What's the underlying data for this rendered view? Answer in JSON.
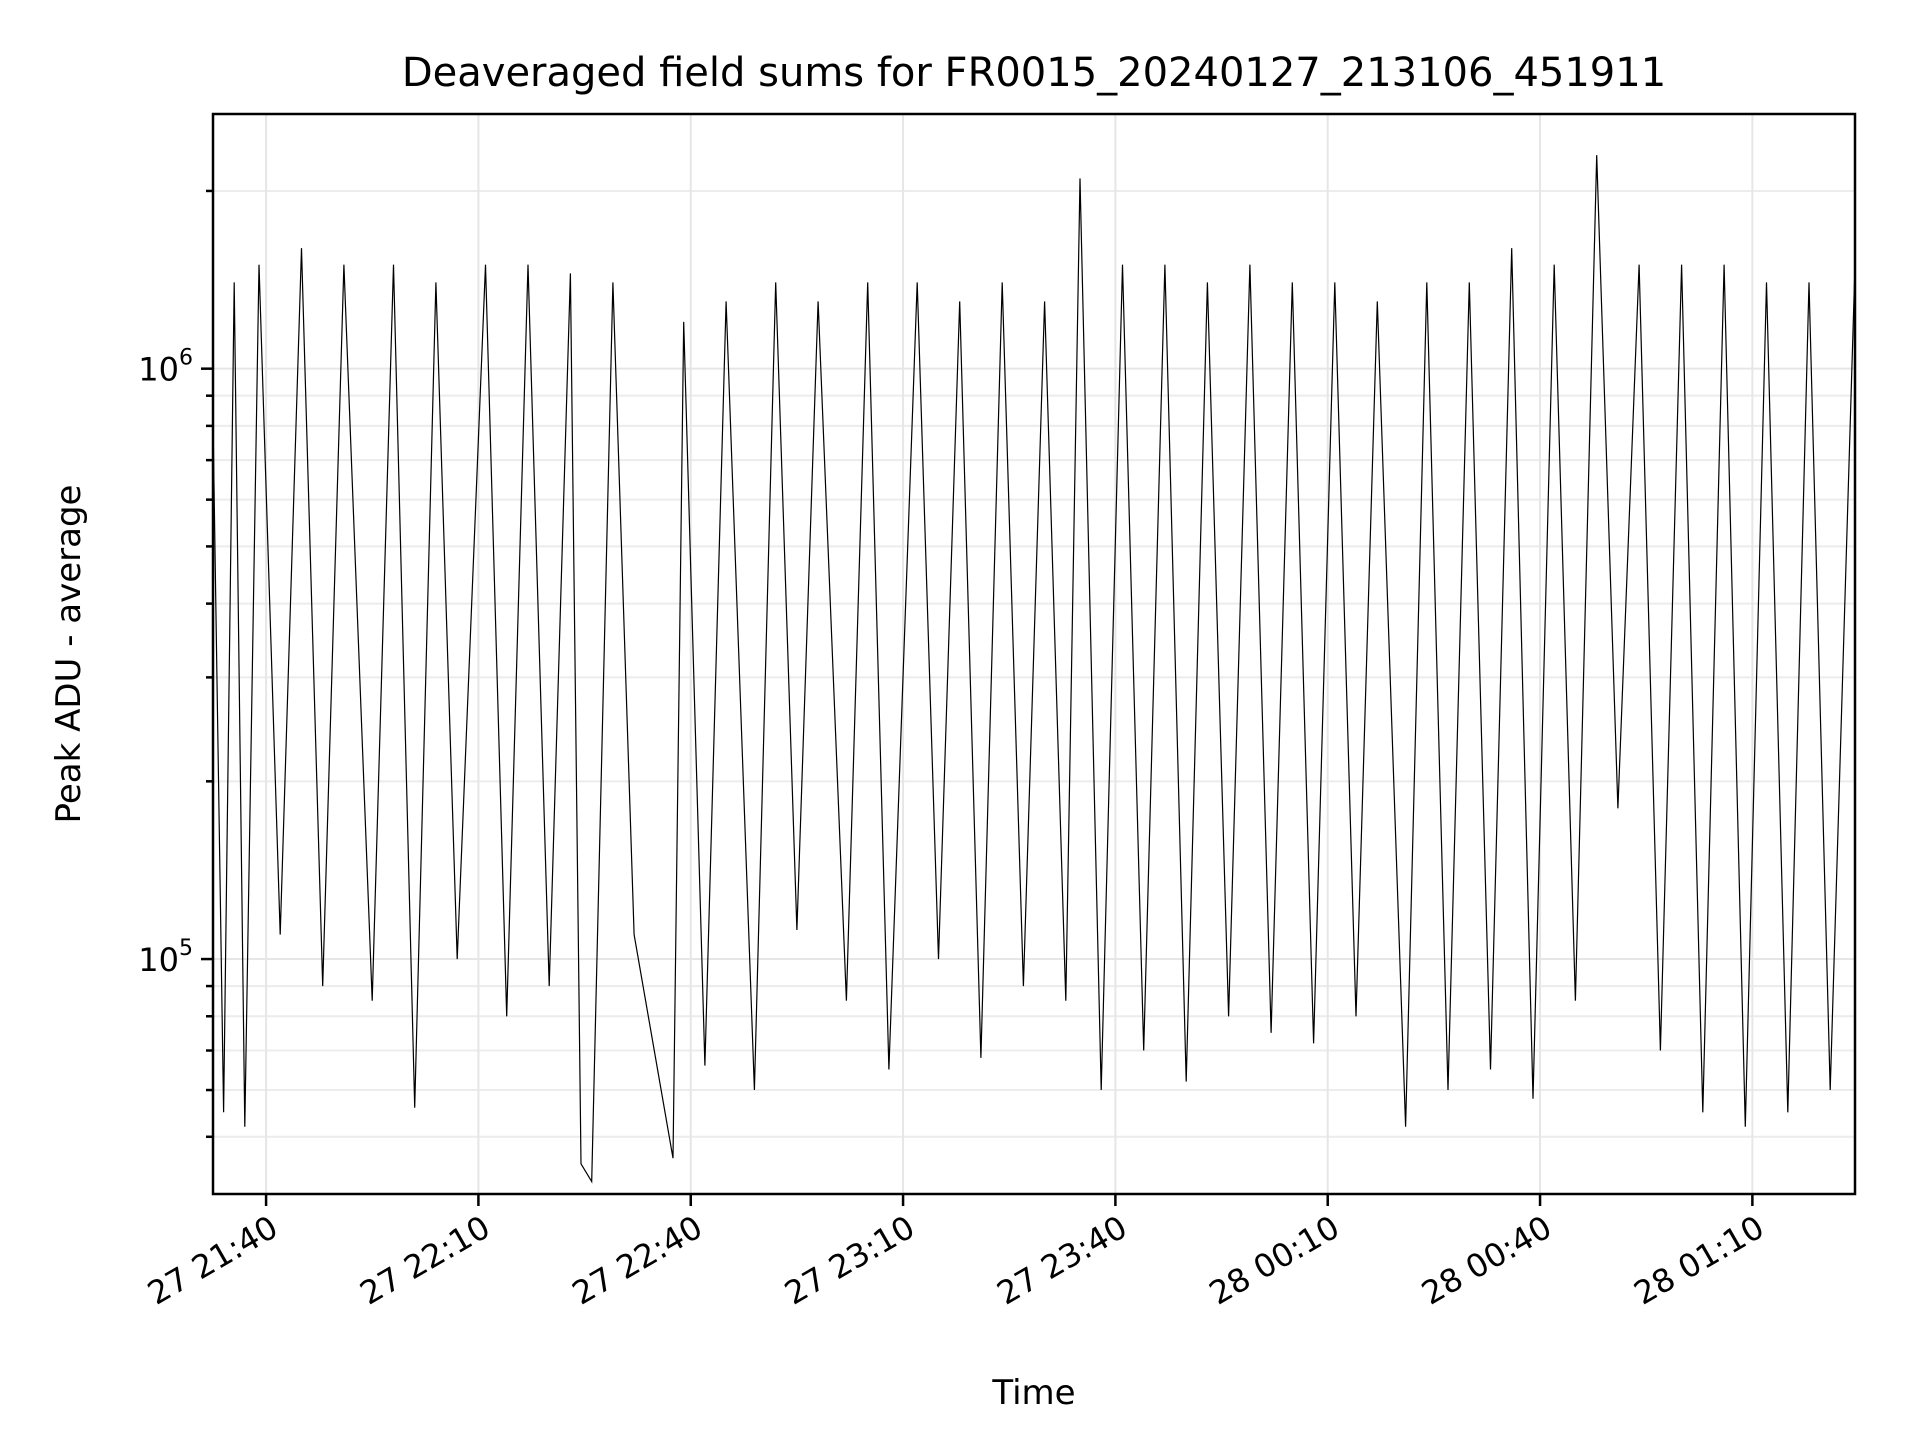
{
  "chart_data": {
    "type": "line",
    "title": "Deaveraged field sums for FR0015_20240127_213106_451911",
    "xlabel": "Time",
    "ylabel": "Peak ADU - average",
    "yscale": "log",
    "ylim": [
      40000,
      2700000
    ],
    "xlim": [
      "2024-01-27 21:32:30",
      "2024-01-28 01:24:30"
    ],
    "grid": true,
    "line_color": "#000000",
    "x_ticks": [
      {
        "value": "2024-01-27 21:40",
        "label": "27 21:40"
      },
      {
        "value": "2024-01-27 22:10",
        "label": "27 22:10"
      },
      {
        "value": "2024-01-27 22:40",
        "label": "27 22:40"
      },
      {
        "value": "2024-01-27 23:10",
        "label": "27 23:10"
      },
      {
        "value": "2024-01-27 23:40",
        "label": "27 23:40"
      },
      {
        "value": "2024-01-28 00:10",
        "label": "28 00:10"
      },
      {
        "value": "2024-01-28 00:40",
        "label": "28 00:40"
      },
      {
        "value": "2024-01-28 01:10",
        "label": "28 01:10"
      }
    ],
    "y_ticks": [
      {
        "value": 100000,
        "base": "10",
        "exp": "5"
      },
      {
        "value": 1000000,
        "base": "10",
        "exp": "6"
      }
    ],
    "series": [
      {
        "x": [
          "2024-01-27 21:32:30",
          "2024-01-27 21:34:00",
          "2024-01-27 21:35:30",
          "2024-01-27 21:37:00",
          "2024-01-27 21:39:00",
          "2024-01-27 21:42:00",
          "2024-01-27 21:45:00",
          "2024-01-27 21:48:00",
          "2024-01-27 21:51:00",
          "2024-01-27 21:55:00",
          "2024-01-27 21:58:00",
          "2024-01-27 22:01:00",
          "2024-01-27 22:04:00",
          "2024-01-27 22:07:00",
          "2024-01-27 22:11:00",
          "2024-01-27 22:14:00",
          "2024-01-27 22:17:00",
          "2024-01-27 22:20:00",
          "2024-01-27 22:23:00",
          "2024-01-27 22:24:30",
          "2024-01-27 22:26:00",
          "2024-01-27 22:29:00",
          "2024-01-27 22:32:00",
          "2024-01-27 22:37:30",
          "2024-01-27 22:39:00",
          "2024-01-27 22:42:00",
          "2024-01-27 22:45:00",
          "2024-01-27 22:49:00",
          "2024-01-27 22:52:00",
          "2024-01-27 22:55:00",
          "2024-01-27 22:58:00",
          "2024-01-27 23:02:00",
          "2024-01-27 23:05:00",
          "2024-01-27 23:08:00",
          "2024-01-27 23:12:00",
          "2024-01-27 23:15:00",
          "2024-01-27 23:18:00",
          "2024-01-27 23:21:00",
          "2024-01-27 23:24:00",
          "2024-01-27 23:27:00",
          "2024-01-27 23:30:00",
          "2024-01-27 23:33:00",
          "2024-01-27 23:35:00",
          "2024-01-27 23:38:00",
          "2024-01-27 23:41:00",
          "2024-01-27 23:44:00",
          "2024-01-27 23:47:00",
          "2024-01-27 23:50:00",
          "2024-01-27 23:53:00",
          "2024-01-27 23:56:00",
          "2024-01-27 23:59:00",
          "2024-01-28 00:02:00",
          "2024-01-28 00:05:00",
          "2024-01-28 00:08:00",
          "2024-01-28 00:11:00",
          "2024-01-28 00:14:00",
          "2024-01-28 00:17:00",
          "2024-01-28 00:21:00",
          "2024-01-28 00:24:00",
          "2024-01-28 00:27:00",
          "2024-01-28 00:30:00",
          "2024-01-28 00:33:00",
          "2024-01-28 00:36:00",
          "2024-01-28 00:39:00",
          "2024-01-28 00:42:00",
          "2024-01-28 00:45:00",
          "2024-01-28 00:48:00",
          "2024-01-28 00:51:00",
          "2024-01-28 00:54:00",
          "2024-01-28 00:57:00",
          "2024-01-28 01:00:00",
          "2024-01-28 01:03:00",
          "2024-01-28 01:06:00",
          "2024-01-28 01:09:00",
          "2024-01-28 01:12:00",
          "2024-01-28 01:15:00",
          "2024-01-28 01:18:00",
          "2024-01-28 01:21:00",
          "2024-01-28 01:24:30"
        ],
        "y": [
          820000,
          55000,
          1400000,
          52000,
          1500000,
          110000,
          1600000,
          90000,
          1500000,
          85000,
          1500000,
          56000,
          1400000,
          100000,
          1500000,
          80000,
          1500000,
          90000,
          1450000,
          45000,
          42000,
          1400000,
          110000,
          46000,
          1200000,
          66000,
          1300000,
          60000,
          1400000,
          112000,
          1300000,
          85000,
          1400000,
          65000,
          1400000,
          100000,
          1300000,
          68000,
          1400000,
          90000,
          1300000,
          85000,
          2100000,
          60000,
          1500000,
          70000,
          1500000,
          62000,
          1400000,
          80000,
          1500000,
          75000,
          1400000,
          72000,
          1400000,
          80000,
          1300000,
          52000,
          1400000,
          60000,
          1400000,
          65000,
          1600000,
          58000,
          1500000,
          85000,
          2300000,
          180000,
          1500000,
          70000,
          1500000,
          55000,
          1500000,
          52000,
          1400000,
          55000,
          1400000,
          60000,
          1500000
        ]
      }
    ]
  }
}
